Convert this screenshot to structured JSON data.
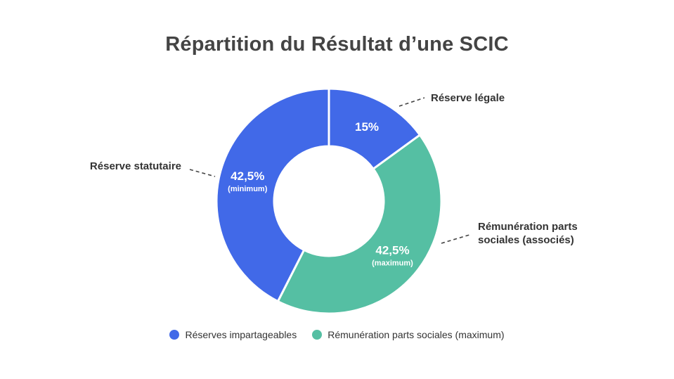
{
  "chart_data": {
    "type": "pie",
    "title": "Répartition du Résultat d’une SCIC",
    "slices": [
      {
        "label": "Réserve légale",
        "value": 15,
        "display": "15%",
        "sub": "",
        "color": "#4169e8"
      },
      {
        "label": "Rémunération parts sociales (associés)",
        "label_lines": [
          "Rémunération parts",
          "sociales (associés)"
        ],
        "value": 42.5,
        "display": "42,5%",
        "sub": "(maximum)",
        "color": "#55bfa3"
      },
      {
        "label": "Réserve statutaire",
        "value": 42.5,
        "display": "42,5%",
        "sub": "(minimum)",
        "color": "#4169e8"
      }
    ],
    "legend": [
      {
        "label": "Réserves impartageables",
        "color": "#4169e8"
      },
      {
        "label": "Rémunération parts sociales (maximum)",
        "color": "#55bfa3"
      }
    ],
    "legend_position": "bottom"
  }
}
